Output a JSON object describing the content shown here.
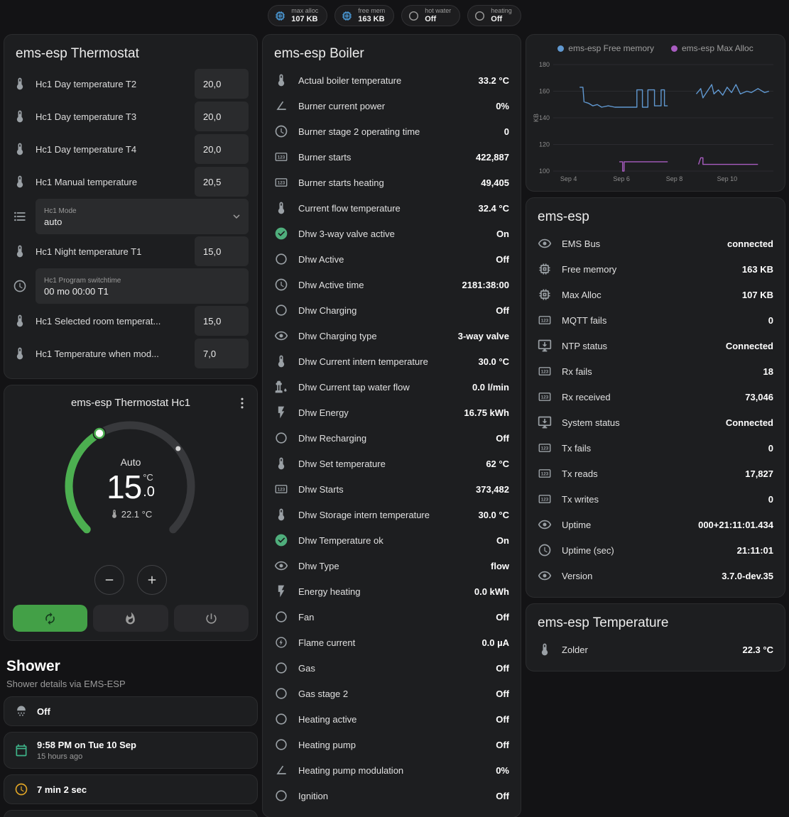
{
  "header_chips": [
    {
      "icon": "memory-icon",
      "icon_color": "#4da0e0",
      "label": "max alloc",
      "value": "107 KB"
    },
    {
      "icon": "memory-icon",
      "icon_color": "#4da0e0",
      "label": "free mem",
      "value": "163 KB"
    },
    {
      "icon": "circle-icon",
      "icon_color": "#9b9b9b",
      "label": "hot water",
      "value": "Off"
    },
    {
      "icon": "circle-icon",
      "icon_color": "#9b9b9b",
      "label": "heating",
      "value": "Off"
    }
  ],
  "thermostat_card": {
    "title": "ems-esp Thermostat",
    "rows": [
      {
        "type": "number",
        "icon": "water-thermometer-icon",
        "label": "Hc1 Day temperature T2",
        "value": "20,0"
      },
      {
        "type": "number",
        "icon": "water-thermometer-icon",
        "label": "Hc1 Day temperature T3",
        "value": "20,0"
      },
      {
        "type": "number",
        "icon": "water-thermometer-icon",
        "label": "Hc1 Day temperature T4",
        "value": "20,0"
      },
      {
        "type": "number",
        "icon": "water-thermometer-icon",
        "label": "Hc1 Manual temperature",
        "value": "20,5"
      },
      {
        "type": "select",
        "icon": "list-icon",
        "label": "Hc1 Mode",
        "value": "auto"
      },
      {
        "type": "number",
        "icon": "water-thermometer-icon",
        "label": "Hc1 Night temperature T1",
        "value": "15,0"
      },
      {
        "type": "text",
        "icon": "clock-edit-icon",
        "label": "Hc1 Program switchtime",
        "value": "00 mo 00:00 T1"
      },
      {
        "type": "number",
        "icon": "water-thermometer-icon",
        "label": "Hc1 Selected room temperat...",
        "value": "15,0"
      },
      {
        "type": "number",
        "icon": "water-thermometer-icon",
        "label": "Hc1 Temperature when mod...",
        "value": "7,0"
      }
    ]
  },
  "dial_card": {
    "title": "ems-esp Thermostat Hc1",
    "mode": "Auto",
    "target_int": "15",
    "target_dec": ".0",
    "unit": "°C",
    "current": "22.1 °C",
    "modes": [
      {
        "name": "auto",
        "icon": "autorenew-icon",
        "active": true
      },
      {
        "name": "heat",
        "icon": "flame-icon",
        "active": false
      },
      {
        "name": "off",
        "icon": "power-icon",
        "active": false
      }
    ]
  },
  "shower_section": {
    "title": "Shower",
    "subtitle": "Shower details via EMS-ESP",
    "cards": [
      {
        "icon": "shower-icon",
        "icon_color": "#9aa0a5",
        "primary": "Off",
        "secondary": "",
        "center": false
      },
      {
        "icon": "calendar-icon",
        "icon_color": "#3eb489",
        "primary": "9:58 PM on Tue 10 Sep",
        "secondary": "15 hours ago",
        "center": false
      },
      {
        "icon": "timer-icon",
        "icon_color": "#e0a526",
        "primary": "7 min 2 sec",
        "secondary": "",
        "center": false
      },
      {
        "icon": "snowflake-alert-icon",
        "icon_color": "#6fb3e0",
        "primary": "",
        "secondary": "",
        "center": true
      }
    ]
  },
  "boiler_card": {
    "title": "ems-esp Boiler",
    "rows": [
      {
        "icon": "thermometer-icon",
        "label": "Actual boiler temperature",
        "value": "33.2 °C"
      },
      {
        "icon": "angle-icon",
        "label": "Burner current power",
        "value": "0%"
      },
      {
        "icon": "clock-icon",
        "label": "Burner stage 2 operating time",
        "value": "0"
      },
      {
        "icon": "counter-icon",
        "label": "Burner starts",
        "value": "422,887"
      },
      {
        "icon": "counter-icon",
        "label": "Burner starts heating",
        "value": "49,405"
      },
      {
        "icon": "thermometer-icon",
        "label": "Current flow temperature",
        "value": "32.4 °C"
      },
      {
        "icon": "check-circle-icon",
        "icon_color": "#4fae7c",
        "label": "Dhw 3-way valve active",
        "value": "On"
      },
      {
        "icon": "circle-icon",
        "label": "Dhw Active",
        "value": "Off"
      },
      {
        "icon": "clock-icon",
        "label": "Dhw Active time",
        "value": "2181:38:00"
      },
      {
        "icon": "circle-icon",
        "label": "Dhw Charging",
        "value": "Off"
      },
      {
        "icon": "eye-icon",
        "label": "Dhw Charging type",
        "value": "3-way valve"
      },
      {
        "icon": "thermometer-icon",
        "label": "Dhw Current intern temperature",
        "value": "30.0 °C"
      },
      {
        "icon": "pump-icon",
        "label": "Dhw Current tap water flow",
        "value": "0.0 l/min"
      },
      {
        "icon": "flash-icon",
        "label": "Dhw Energy",
        "value": "16.75 kWh"
      },
      {
        "icon": "circle-icon",
        "label": "Dhw Recharging",
        "value": "Off"
      },
      {
        "icon": "thermometer-icon",
        "label": "Dhw Set temperature",
        "value": "62 °C"
      },
      {
        "icon": "counter-icon",
        "label": "Dhw Starts",
        "value": "373,482"
      },
      {
        "icon": "thermometer-icon",
        "label": "Dhw Storage intern temperature",
        "value": "30.0 °C"
      },
      {
        "icon": "check-circle-icon",
        "icon_color": "#4fae7c",
        "label": "Dhw Temperature ok",
        "value": "On"
      },
      {
        "icon": "eye-icon",
        "label": "Dhw Type",
        "value": "flow"
      },
      {
        "icon": "flash-icon",
        "label": "Energy heating",
        "value": "0.0 kWh"
      },
      {
        "icon": "circle-icon",
        "label": "Fan",
        "value": "Off"
      },
      {
        "icon": "flash-circle-icon",
        "label": "Flame current",
        "value": "0.0 µA"
      },
      {
        "icon": "circle-icon",
        "label": "Gas",
        "value": "Off"
      },
      {
        "icon": "circle-icon",
        "label": "Gas stage 2",
        "value": "Off"
      },
      {
        "icon": "circle-icon",
        "label": "Heating active",
        "value": "Off"
      },
      {
        "icon": "circle-icon",
        "label": "Heating pump",
        "value": "Off"
      },
      {
        "icon": "angle-icon",
        "label": "Heating pump modulation",
        "value": "0%"
      },
      {
        "icon": "circle-icon",
        "label": "Ignition",
        "value": "Off"
      }
    ]
  },
  "emsesp_card": {
    "title": "ems-esp",
    "rows": [
      {
        "icon": "eye-icon",
        "label": "EMS Bus",
        "value": "connected"
      },
      {
        "icon": "memory-icon",
        "label": "Free memory",
        "value": "163 KB"
      },
      {
        "icon": "memory-icon",
        "label": "Max Alloc",
        "value": "107 KB"
      },
      {
        "icon": "counter-icon",
        "label": "MQTT fails",
        "value": "0"
      },
      {
        "icon": "monitor-icon",
        "label": "NTP status",
        "value": "Connected"
      },
      {
        "icon": "counter-icon",
        "label": "Rx fails",
        "value": "18"
      },
      {
        "icon": "counter-icon",
        "label": "Rx received",
        "value": "73,046"
      },
      {
        "icon": "monitor-icon",
        "label": "System status",
        "value": "Connected"
      },
      {
        "icon": "counter-icon",
        "label": "Tx fails",
        "value": "0"
      },
      {
        "icon": "counter-icon",
        "label": "Tx reads",
        "value": "17,827"
      },
      {
        "icon": "counter-icon",
        "label": "Tx writes",
        "value": "0"
      },
      {
        "icon": "eye-icon",
        "label": "Uptime",
        "value": "000+21:11:01.434"
      },
      {
        "icon": "clock-icon",
        "label": "Uptime (sec)",
        "value": "21:11:01"
      },
      {
        "icon": "eye-icon",
        "label": "Version",
        "value": "3.7.0-dev.35"
      }
    ]
  },
  "temperature_card": {
    "title": "ems-esp Temperature",
    "rows": [
      {
        "icon": "thermometer-icon",
        "label": "Zolder",
        "value": "22.3 °C"
      }
    ]
  },
  "chart_data": {
    "type": "line",
    "ylabel": "KB",
    "ylim": [
      100,
      180
    ],
    "y_ticks": [
      100,
      120,
      140,
      160,
      180
    ],
    "x_ticks": [
      {
        "label": "Sep 4",
        "pos": 0.07
      },
      {
        "label": "Sep 6",
        "pos": 0.31
      },
      {
        "label": "Sep 8",
        "pos": 0.55
      },
      {
        "label": "Sep 10",
        "pos": 0.79
      }
    ],
    "legend_position": "top",
    "grid": true,
    "series": [
      {
        "name": "ems-esp Free memory",
        "color": "#6098d0",
        "segments": [
          [
            [
              0.12,
              163
            ],
            [
              0.135,
              163
            ],
            [
              0.14,
              152
            ],
            [
              0.16,
              151
            ],
            [
              0.18,
              149
            ],
            [
              0.2,
              150
            ],
            [
              0.22,
              148
            ],
            [
              0.25,
              149
            ],
            [
              0.28,
              148
            ],
            [
              0.33,
              148
            ],
            [
              0.38,
              148
            ],
            [
              0.38,
              161
            ],
            [
              0.405,
              161
            ],
            [
              0.405,
              148
            ],
            [
              0.43,
              148
            ],
            [
              0.43,
              161
            ],
            [
              0.46,
              161
            ],
            [
              0.46,
              149
            ],
            [
              0.49,
              149
            ],
            [
              0.49,
              161
            ],
            [
              0.505,
              161
            ],
            [
              0.505,
              149
            ],
            [
              0.52,
              149
            ]
          ],
          [
            [
              0.65,
              158
            ],
            [
              0.67,
              162
            ],
            [
              0.68,
              155
            ],
            [
              0.7,
              160
            ],
            [
              0.72,
              165
            ],
            [
              0.73,
              158
            ],
            [
              0.75,
              161
            ],
            [
              0.77,
              157
            ],
            [
              0.79,
              163
            ],
            [
              0.81,
              159
            ],
            [
              0.83,
              165
            ],
            [
              0.85,
              158
            ],
            [
              0.88,
              160
            ],
            [
              0.9,
              159
            ],
            [
              0.93,
              162
            ],
            [
              0.96,
              159
            ],
            [
              0.98,
              160
            ]
          ]
        ]
      },
      {
        "name": "ems-esp Max Alloc",
        "color": "#a85cc0",
        "segments": [
          [
            [
              0.3,
              107
            ],
            [
              0.315,
              107
            ],
            [
              0.315,
              100
            ],
            [
              0.322,
              100
            ],
            [
              0.322,
              107
            ],
            [
              0.52,
              107
            ]
          ],
          [
            [
              0.66,
              105
            ],
            [
              0.67,
              110
            ],
            [
              0.68,
              110
            ],
            [
              0.68,
              105
            ],
            [
              0.93,
              105
            ]
          ]
        ]
      }
    ]
  }
}
